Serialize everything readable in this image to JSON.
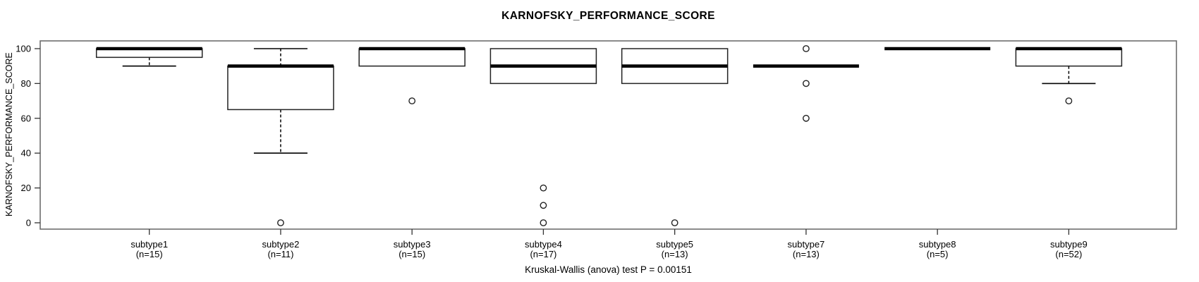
{
  "title": "KARNOFSKY_PERFORMANCE_SCORE",
  "footer": "Kruskal-Wallis (anova) test P = 0.00151",
  "colors": {
    "line": "#000000",
    "box_stroke": "#222222",
    "axis": "#333333",
    "border": "#6e6e6e",
    "background": "#ffffff"
  },
  "chart_data": {
    "type": "boxplot",
    "title": "KARNOFSKY_PERFORMANCE_SCORE",
    "ylabel": "KARNOFSKY_PERFORMANCE_SCORE",
    "xlabel": "",
    "ylim": [
      0,
      100
    ],
    "yticks": [
      0,
      20,
      40,
      60,
      80,
      100
    ],
    "grid": false,
    "legend": "none",
    "annotation": "Kruskal-Wallis (anova) test P = 0.00151",
    "groups": [
      {
        "label": "subtype1",
        "n": 15,
        "n_label": "(n=15)",
        "q1": 95,
        "median": 100,
        "q3": 100,
        "whisker_low": 90,
        "whisker_high": 100,
        "outliers": []
      },
      {
        "label": "subtype2",
        "n": 11,
        "n_label": "(n=11)",
        "q1": 65,
        "median": 90,
        "q3": 90,
        "whisker_low": 40,
        "whisker_high": 100,
        "outliers": [
          0
        ]
      },
      {
        "label": "subtype3",
        "n": 15,
        "n_label": "(n=15)",
        "q1": 90,
        "median": 100,
        "q3": 100,
        "whisker_low": 90,
        "whisker_high": 100,
        "outliers": [
          70
        ]
      },
      {
        "label": "subtype4",
        "n": 17,
        "n_label": "(n=17)",
        "q1": 80,
        "median": 90,
        "q3": 100,
        "whisker_low": 80,
        "whisker_high": 100,
        "outliers": [
          20,
          10,
          0
        ]
      },
      {
        "label": "subtype5",
        "n": 13,
        "n_label": "(n=13)",
        "q1": 80,
        "median": 90,
        "q3": 100,
        "whisker_low": 80,
        "whisker_high": 100,
        "outliers": [
          0
        ]
      },
      {
        "label": "subtype7",
        "n": 13,
        "n_label": "(n=13)",
        "q1": 90,
        "median": 90,
        "q3": 90,
        "whisker_low": 90,
        "whisker_high": 90,
        "outliers": [
          100,
          80,
          60
        ]
      },
      {
        "label": "subtype8",
        "n": 5,
        "n_label": "(n=5)",
        "q1": 100,
        "median": 100,
        "q3": 100,
        "whisker_low": 100,
        "whisker_high": 100,
        "outliers": []
      },
      {
        "label": "subtype9",
        "n": 52,
        "n_label": "(n=52)",
        "q1": 90,
        "median": 100,
        "q3": 100,
        "whisker_low": 80,
        "whisker_high": 100,
        "outliers": [
          70
        ]
      }
    ]
  }
}
